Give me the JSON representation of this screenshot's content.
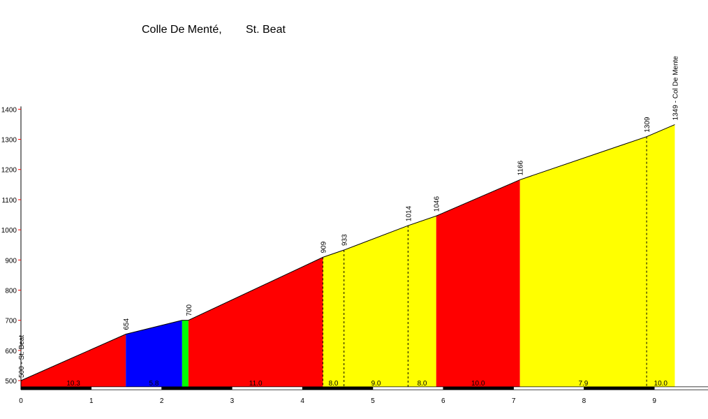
{
  "chart_data": {
    "type": "area",
    "title": "Colle De Menté,",
    "subtitle": "St. Beat",
    "xlabel": "",
    "ylabel": "",
    "xlim": [
      0,
      9.8
    ],
    "ylim": [
      480,
      1400
    ],
    "x_ticks": [
      0,
      1,
      2,
      3,
      4,
      5,
      6,
      7,
      8,
      9
    ],
    "y_ticks": [
      500,
      600,
      700,
      800,
      900,
      1000,
      1100,
      1200,
      1300,
      1400
    ],
    "profile": [
      {
        "x": 0,
        "y": 500
      },
      {
        "x": 1.49,
        "y": 654
      },
      {
        "x": 2.29,
        "y": 700
      },
      {
        "x": 2.38,
        "y": 700
      },
      {
        "x": 4.29,
        "y": 909
      },
      {
        "x": 4.59,
        "y": 933
      },
      {
        "x": 5.5,
        "y": 1014
      },
      {
        "x": 5.9,
        "y": 1046
      },
      {
        "x": 7.09,
        "y": 1166
      },
      {
        "x": 8.89,
        "y": 1309
      },
      {
        "x": 9.29,
        "y": 1349
      }
    ],
    "segments": [
      {
        "from": 0,
        "to": 1.49,
        "gradient": "10.3",
        "color": "#ff0000"
      },
      {
        "from": 1.49,
        "to": 2.29,
        "gradient": "5.8",
        "color": "#0000ff"
      },
      {
        "from": 2.29,
        "to": 2.38,
        "gradient": "",
        "color": "#00ff00"
      },
      {
        "from": 2.38,
        "to": 4.29,
        "gradient": "11.0",
        "color": "#ff0000"
      },
      {
        "from": 4.29,
        "to": 4.59,
        "gradient": "8.0",
        "color": "#ffff00"
      },
      {
        "from": 4.59,
        "to": 5.5,
        "gradient": "9.0",
        "color": "#ffff00"
      },
      {
        "from": 5.5,
        "to": 5.9,
        "gradient": "8.0",
        "color": "#ffff00"
      },
      {
        "from": 5.9,
        "to": 7.09,
        "gradient": "10.0",
        "color": "#ff0000"
      },
      {
        "from": 7.09,
        "to": 8.89,
        "gradient": "7.9",
        "color": "#ffff00"
      },
      {
        "from": 8.89,
        "to": 9.29,
        "gradient": "10.0",
        "color": "#ffff00"
      }
    ],
    "point_labels": [
      {
        "x": 0,
        "text": "500 - St. Beat"
      },
      {
        "x": 1.49,
        "text": "654"
      },
      {
        "x": 2.38,
        "text": "700"
      },
      {
        "x": 4.29,
        "text": "909"
      },
      {
        "x": 4.59,
        "text": "933"
      },
      {
        "x": 5.5,
        "text": "1014"
      },
      {
        "x": 5.9,
        "text": "1046"
      },
      {
        "x": 7.09,
        "text": "1166"
      },
      {
        "x": 8.89,
        "text": "1309"
      },
      {
        "x": 9.29,
        "text": "1349 - Col  De Mente"
      }
    ],
    "dashed_x": [
      4.29,
      4.59,
      5.5,
      8.89
    ],
    "grid": false,
    "legend": "none"
  }
}
